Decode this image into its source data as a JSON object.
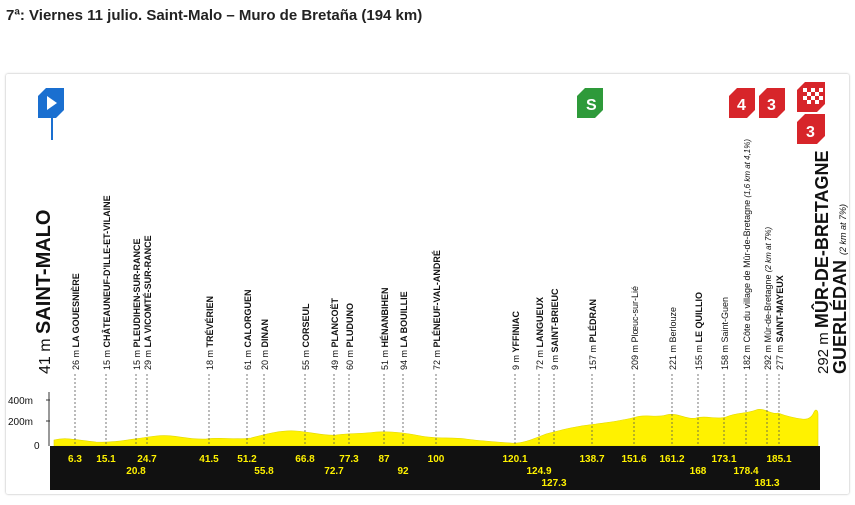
{
  "title": "7ª: Viernes 11 julio. Saint-Malo – Muro de Bretaña (194 km)",
  "colors": {
    "profile_fill": "#fff200",
    "baseline_bar": "#111111",
    "start_badge": "#1a6fd0",
    "sprint_badge": "#2e9a3a",
    "climb_badge": "#d7252a",
    "finish_badge": "#d7252a"
  },
  "icons": {
    "start": "start-flag-icon",
    "sprint": "sprint-green-icon",
    "finish": "finish-checkered-icon"
  },
  "badges": {
    "sprint_letter": "S",
    "climb_cat_1": "4",
    "climb_cat_2": "3",
    "finish_cat": "3"
  },
  "y_axis": {
    "labels": [
      "400m",
      "200m",
      "0"
    ]
  },
  "locations": [
    {
      "alt": "41 m",
      "name": "SAINT-MALO",
      "km": "",
      "style": "big"
    },
    {
      "alt": "26 m",
      "name": "LA GOUESNIÈRE",
      "km": "6.3",
      "style": "bold"
    },
    {
      "alt": "15 m",
      "name": "CHÂTEAUNEUF-D'ILLE-ET-VILAINE",
      "km": "15.1",
      "style": "bold"
    },
    {
      "alt": "15 m",
      "name": "PLEUDIHEN-SUR-RANCE",
      "km": "20.8",
      "style": "bold"
    },
    {
      "alt": "29 m",
      "name": "LA VICOMTÉ-SUR-RANCE",
      "km": "24.7",
      "style": "bold"
    },
    {
      "alt": "18 m",
      "name": "TRÉVÉRIEN",
      "km": "41.5",
      "style": "bold"
    },
    {
      "alt": "61 m",
      "name": "CALORGUEN",
      "km": "51.2",
      "style": "bold"
    },
    {
      "alt": "20 m",
      "name": "DINAN",
      "km": "55.8",
      "style": "bold"
    },
    {
      "alt": "55 m",
      "name": "CORSEUL",
      "km": "66.8",
      "style": "bold"
    },
    {
      "alt": "49 m",
      "name": "PLANCOËT",
      "km": "72.7",
      "style": "bold"
    },
    {
      "alt": "60 m",
      "name": "PLUDUNO",
      "km": "77.3",
      "style": "bold"
    },
    {
      "alt": "51 m",
      "name": "HÉNANBIHEN",
      "km": "87",
      "style": "bold"
    },
    {
      "alt": "94 m",
      "name": "LA BOUILLIE",
      "km": "92",
      "style": "bold"
    },
    {
      "alt": "72 m",
      "name": "PLÉNEUF-VAL-ANDRÉ",
      "km": "100",
      "style": "bold"
    },
    {
      "alt": "9 m",
      "name": "YFFINIAC",
      "km": "120.1",
      "style": "bold"
    },
    {
      "alt": "72 m",
      "name": "LANGUEUX",
      "km": "124.9",
      "style": "bold"
    },
    {
      "alt": "9 m",
      "name": "SAINT-BRIEUC",
      "km": "127.3",
      "style": "bold"
    },
    {
      "alt": "157 m",
      "name": "PLÉDRAN",
      "km": "138.7",
      "style": "bold"
    },
    {
      "alt": "209 m",
      "name": "Plœuc-sur-Lié",
      "km": "151.6",
      "style": "normal"
    },
    {
      "alt": "221 m",
      "name": "Berlouze",
      "km": "161.2",
      "style": "normal"
    },
    {
      "alt": "155 m",
      "name": "LE QUILLIO",
      "km": "168",
      "style": "bold"
    },
    {
      "alt": "158 m",
      "name": "Saint-Guen",
      "km": "173.1",
      "style": "normal"
    },
    {
      "alt": "182 m",
      "name": "Côte du village de Mûr-de-Bretagne",
      "km": "178.4",
      "style": "normal",
      "note": "(1,6 km at 4,1%)"
    },
    {
      "alt": "292 m",
      "name": "Mûr-de-Bretagne",
      "km": "181.3",
      "style": "normal",
      "note": "(2 km at 7%)"
    },
    {
      "alt": "277 m",
      "name": "SAINT-MAYEUX",
      "km": "185.1",
      "style": "bold"
    },
    {
      "alt": "292 m",
      "name": "MÛR-DE-BRETAGNE GUERLÉDAN",
      "km": "",
      "style": "finish",
      "note": "(2 km at 7%)"
    }
  ]
}
